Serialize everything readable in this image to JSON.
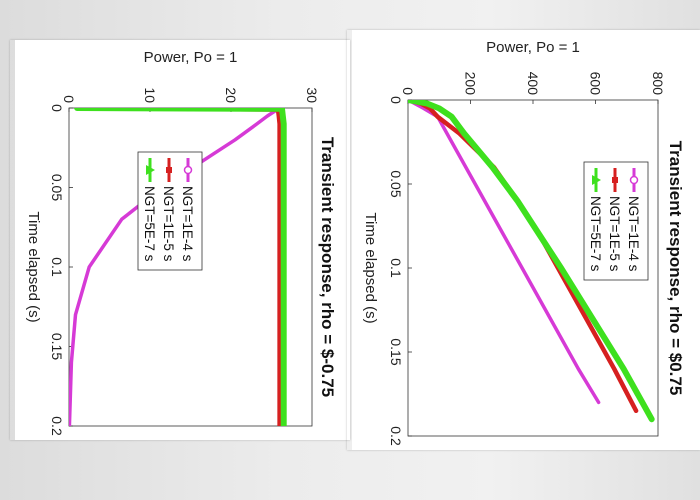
{
  "chart_data": [
    {
      "type": "line",
      "title": "Transient response, rho = $-0.75",
      "xlabel": "Time elapsed (s)",
      "ylabel": "Power, Po = 1",
      "xlim": [
        0,
        0.2
      ],
      "ylim": [
        0,
        30
      ],
      "xticks": [
        "0",
        "0.05",
        "0.1",
        "0.15",
        "0.2"
      ],
      "yticks": [
        "0",
        "10",
        "20",
        "30"
      ],
      "legend": "inside, upper-middle",
      "series": [
        {
          "name": "NGT=1E-4 s",
          "color": "#d63ad6",
          "marker": "circle",
          "x": [
            0,
            0.005,
            0.01,
            0.02,
            0.03,
            0.04,
            0.05,
            0.07,
            0.1,
            0.13,
            0.16,
            0.2
          ],
          "y": [
            26,
            24.5,
            23.2,
            20.5,
            17.5,
            14.5,
            11.5,
            6.5,
            2.5,
            0.8,
            0.3,
            0.05
          ]
        },
        {
          "name": "NGT=1E-5 s",
          "color": "#d62020",
          "marker": "square",
          "x": [
            0,
            0.001,
            0.005,
            0.01,
            0.02,
            0.04,
            0.06,
            0.08,
            0.1,
            0.15,
            0.2
          ],
          "y": [
            1,
            25.8,
            25.9,
            26,
            26,
            26,
            26,
            26,
            26,
            26,
            26
          ]
        },
        {
          "name": "NGT=5E-7 s",
          "color": "#3ee01e",
          "marker": "triangle",
          "x": [
            0,
            0.0005,
            0.005,
            0.01,
            0.02,
            0.04,
            0.06,
            0.08,
            0.1,
            0.15,
            0.2
          ],
          "y": [
            1,
            26.3,
            26.4,
            26.5,
            26.5,
            26.5,
            26.5,
            26.5,
            26.5,
            26.5,
            26.5
          ]
        }
      ]
    },
    {
      "type": "line",
      "title": "Transient response, rho = $0.75",
      "xlabel": "Time elapsed (s)",
      "ylabel": "Power, Po = 1",
      "xlim": [
        0,
        0.2
      ],
      "ylim": [
        0,
        800
      ],
      "xticks": [
        "0",
        "0.05",
        "0.1",
        "0.15",
        "0.2"
      ],
      "yticks": [
        "0",
        "200",
        "400",
        "600",
        "800"
      ],
      "legend": "inside, upper-middle",
      "series": [
        {
          "name": "NGT=1E-4 s",
          "color": "#d63ad6",
          "marker": "circle",
          "x": [
            0,
            0.005,
            0.01,
            0.03,
            0.05,
            0.08,
            0.1,
            0.13,
            0.16,
            0.18
          ],
          "y": [
            1,
            50,
            95,
            155,
            215,
            305,
            365,
            455,
            545,
            610
          ]
        },
        {
          "name": "NGT=1E-5 s",
          "color": "#d62020",
          "marker": "square",
          "x": [
            0,
            0.002,
            0.005,
            0.01,
            0.02,
            0.04,
            0.06,
            0.08,
            0.1,
            0.13,
            0.16,
            0.185
          ],
          "y": [
            1,
            40,
            70,
            95,
            165,
            275,
            350,
            420,
            480,
            570,
            660,
            730
          ]
        },
        {
          "name": "NGT=5E-7 s",
          "color": "#3ee01e",
          "marker": "triangle",
          "x": [
            0,
            0.002,
            0.005,
            0.01,
            0.02,
            0.04,
            0.06,
            0.08,
            0.1,
            0.13,
            0.16,
            0.19
          ],
          "y": [
            1,
            60,
            100,
            140,
            180,
            270,
            350,
            420,
            490,
            590,
            690,
            780
          ]
        }
      ]
    }
  ]
}
